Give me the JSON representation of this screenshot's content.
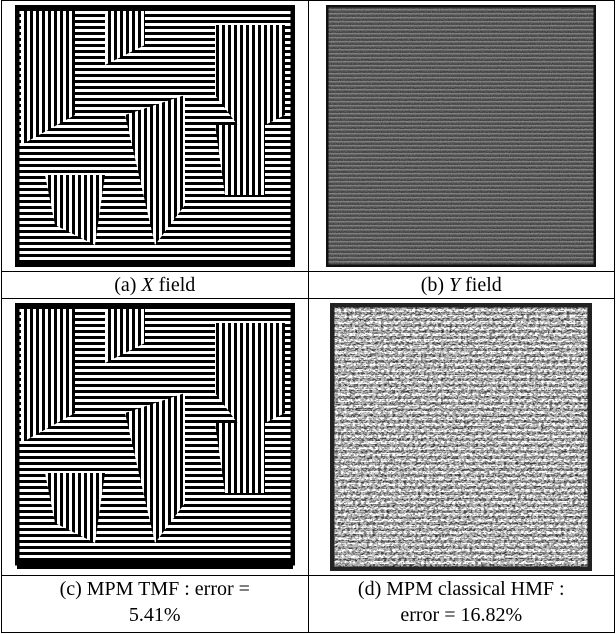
{
  "figure": {
    "panels": [
      {
        "label": "(a)",
        "variable": "X",
        "text": "field"
      },
      {
        "label": "(b)",
        "variable": "Y",
        "text": "field"
      },
      {
        "lines": [
          "(c) MPM TMF : error =",
          "5.41%"
        ]
      },
      {
        "lines": [
          "(d) MPM classical HMF :",
          "error = 16.82%"
        ]
      }
    ]
  }
}
